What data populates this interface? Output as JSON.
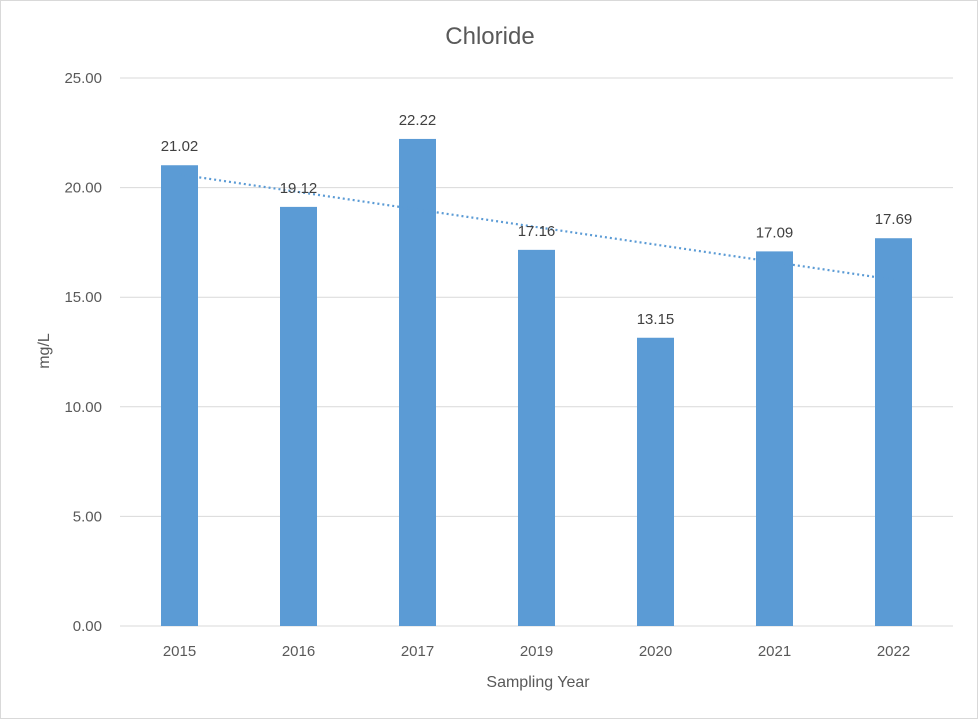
{
  "chart_data": {
    "type": "bar",
    "title": "Chloride",
    "xlabel": "Sampling Year",
    "ylabel": "mg/L",
    "categories": [
      "2015",
      "2016",
      "2017",
      "2019",
      "2020",
      "2021",
      "2022"
    ],
    "values": [
      21.02,
      19.12,
      22.22,
      17.16,
      13.15,
      17.09,
      17.69
    ],
    "data_labels": [
      "21.02",
      "19.12",
      "22.22",
      "17.16",
      "13.15",
      "17.09",
      "17.69"
    ],
    "ylim": [
      0,
      25
    ],
    "yticks": [
      "0.00",
      "5.00",
      "10.00",
      "15.00",
      "20.00",
      "25.00"
    ],
    "trendline": {
      "type": "linear",
      "style": "dotted",
      "start_value": 20.6,
      "end_value": 15.8
    },
    "grid": true,
    "legend": "none",
    "colors": {
      "bar": "#5b9bd5",
      "trendline": "#5b9bd5",
      "grid": "#d9d9d9",
      "text": "#595959"
    }
  }
}
